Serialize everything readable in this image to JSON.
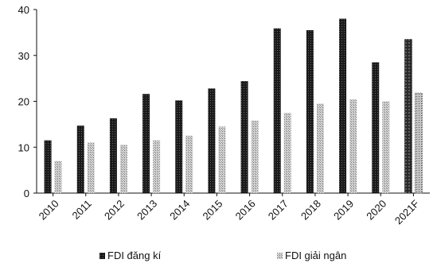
{
  "chart_data": {
    "type": "bar",
    "title": "",
    "xlabel": "",
    "ylabel": "",
    "categories": [
      "2010",
      "2011",
      "2012",
      "2013",
      "2014",
      "2015",
      "2016",
      "2017",
      "2018",
      "2019",
      "2020",
      "2021F"
    ],
    "series": [
      {
        "name": "FDI đăng kí",
        "values": [
          11.5,
          14.7,
          16.3,
          21.6,
          20.2,
          22.8,
          24.4,
          35.9,
          35.5,
          38.0,
          28.5,
          33.5
        ],
        "color": "#1a1a1a"
      },
      {
        "name": "FDI giải ngân",
        "values": [
          7.0,
          11.0,
          10.5,
          11.5,
          12.5,
          14.5,
          15.8,
          17.5,
          19.5,
          20.4,
          20.0,
          21.8
        ],
        "color": "#a8a8a8"
      }
    ],
    "yticks": [
      0,
      10,
      20,
      30,
      40
    ],
    "ylim": [
      0,
      40
    ],
    "grid": false,
    "legend_position": "bottom"
  }
}
